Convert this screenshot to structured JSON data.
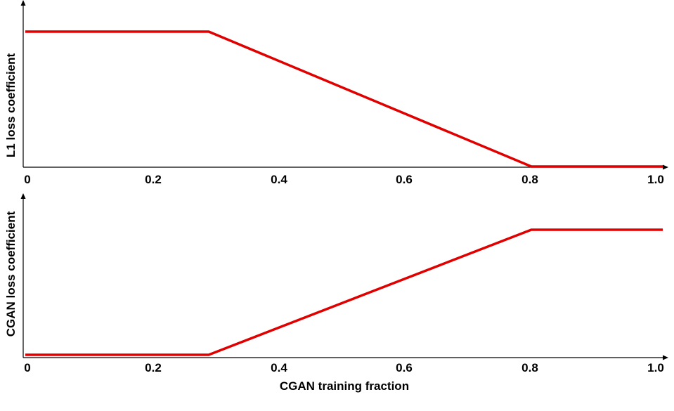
{
  "chart_data": [
    {
      "type": "line",
      "title": "",
      "xlabel": "",
      "ylabel": "L1 loss coefficient",
      "xlim": [
        0,
        1.0
      ],
      "ylim": [
        0,
        1
      ],
      "x_ticks": [
        "0",
        "0.2",
        "0.4",
        "0.6",
        "0.8",
        "1.0"
      ],
      "y_ticks": [],
      "grid": false,
      "series": [
        {
          "color": "#e00000",
          "x": [
            0,
            0.29,
            0.8,
            1.0
          ],
          "y": [
            1,
            1,
            0,
            0
          ]
        }
      ]
    },
    {
      "type": "line",
      "title": "",
      "xlabel": "CGAN training fraction",
      "ylabel": "CGAN loss coefficient",
      "xlim": [
        0,
        1.0
      ],
      "ylim": [
        0,
        1
      ],
      "x_ticks": [
        "0",
        "0.2",
        "0.4",
        "0.6",
        "0.8",
        "1.0"
      ],
      "y_ticks": [],
      "grid": false,
      "series": [
        {
          "color": "#e00000",
          "x": [
            0,
            0.29,
            0.8,
            1.0
          ],
          "y": [
            0,
            0,
            1,
            1
          ]
        }
      ]
    }
  ]
}
